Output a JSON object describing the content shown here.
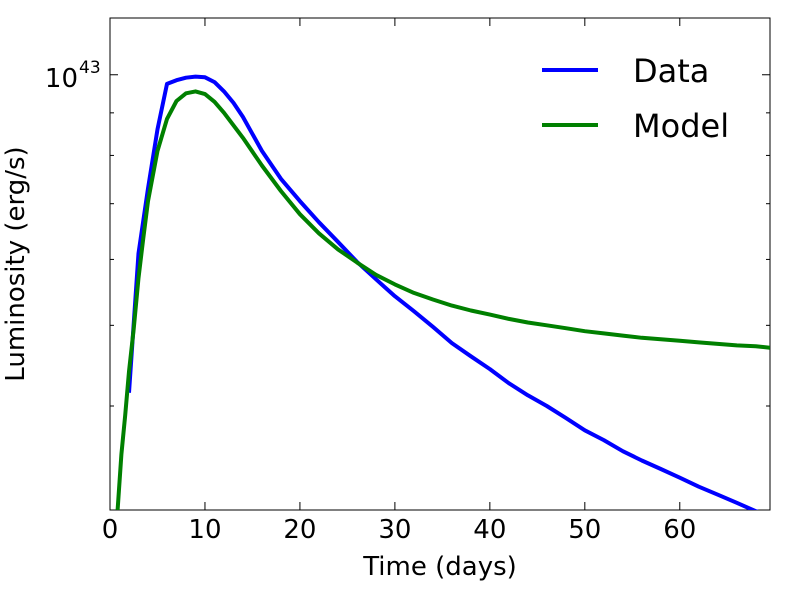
{
  "chart_data": {
    "type": "line",
    "title": "",
    "xlabel": "Time (days)",
    "ylabel": "Luminosity (erg/s)",
    "xlim": [
      0,
      69.5
    ],
    "ylim": [
      3e+42,
      1.17e+43
    ],
    "yscale": "log",
    "grid": false,
    "legend_position": "top-right",
    "x_ticks": [
      0,
      10,
      20,
      30,
      40,
      50,
      60
    ],
    "x_tick_labels": [
      "0",
      "10",
      "20",
      "30",
      "40",
      "50",
      "60"
    ],
    "y_major_tick": {
      "value": 1e+43,
      "base": "10",
      "exponent": "43"
    },
    "y_minor_ticks": [
      3e+42,
      4e+42,
      5e+42,
      6e+42,
      7e+42,
      8e+42,
      9e+42
    ],
    "series": [
      {
        "name": "Data",
        "color": "#0000ff",
        "x": [
          2,
          3,
          4,
          5,
          6,
          7,
          8,
          9,
          10,
          11,
          12,
          13,
          14,
          16,
          18,
          20,
          22,
          24,
          26,
          28,
          30,
          32,
          34,
          36,
          38,
          40,
          42,
          44,
          46,
          48,
          50,
          52,
          54,
          56,
          58,
          60,
          62,
          64,
          66,
          68,
          69.5
        ],
        "y": [
          4.15e+42,
          6.1e+42,
          7.3e+42,
          8.6e+42,
          9.75e+42,
          9.85e+42,
          9.92e+42,
          9.95e+42,
          9.93e+42,
          9.8e+42,
          9.55e+42,
          9.25e+42,
          8.9e+42,
          8.1e+42,
          7.5e+42,
          7.05e+42,
          6.65e+42,
          6.3e+42,
          5.96e+42,
          5.68e+42,
          5.42e+42,
          5.2e+42,
          4.98e+42,
          4.76e+42,
          4.59e+42,
          4.43e+42,
          4.26e+42,
          4.12e+42,
          4e+42,
          3.87e+42,
          3.74e+42,
          3.64e+42,
          3.53e+42,
          3.44e+42,
          3.36e+42,
          3.28e+42,
          3.2e+42,
          3.13e+42,
          3.06e+42,
          2.99e+42,
          2.96e+42
        ]
      },
      {
        "name": "Model",
        "color": "#008000",
        "x": [
          0.8,
          1.2,
          1.6,
          2,
          2.5,
          3,
          3.5,
          4,
          5,
          6,
          7,
          8,
          9,
          10,
          11,
          12,
          14,
          16,
          18,
          20,
          22,
          24,
          26,
          28,
          30,
          32,
          34,
          36,
          38,
          40,
          42,
          44,
          46,
          48,
          50,
          52,
          54,
          56,
          58,
          60,
          62,
          64,
          66,
          68,
          69.5
        ],
        "y": [
          3e+42,
          3.5e+42,
          3.9e+42,
          4.4e+42,
          4.95e+42,
          5.7e+42,
          6.35e+42,
          7.05e+42,
          8.1e+42,
          8.85e+42,
          9.3e+42,
          9.5e+42,
          9.55e+42,
          9.48e+42,
          9.28e+42,
          9e+42,
          8.4e+42,
          7.78e+42,
          7.25e+42,
          6.8e+42,
          6.45e+42,
          6.17e+42,
          5.95e+42,
          5.75e+42,
          5.6e+42,
          5.47e+42,
          5.37e+42,
          5.28e+42,
          5.21e+42,
          5.15e+42,
          5.09e+42,
          5.04e+42,
          5e+42,
          4.96e+42,
          4.92e+42,
          4.89e+42,
          4.86e+42,
          4.83e+42,
          4.81e+42,
          4.79e+42,
          4.77e+42,
          4.75e+42,
          4.73e+42,
          4.72e+42,
          4.7e+42
        ]
      }
    ]
  }
}
